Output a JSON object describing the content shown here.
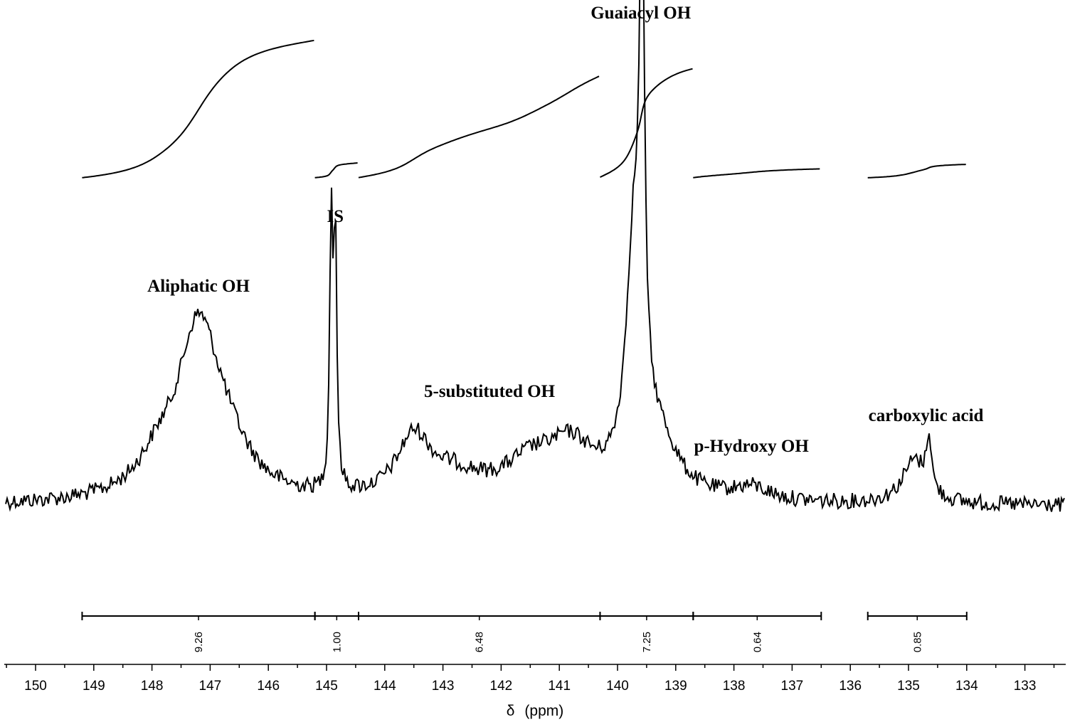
{
  "chart_data": {
    "type": "line",
    "title": "",
    "xlabel": "δ",
    "xunit": "(ppm)",
    "xlim": [
      150.5,
      132.5
    ],
    "x_reversed": true,
    "ticks": [
      "150",
      "149",
      "148",
      "147",
      "146",
      "145",
      "144",
      "143",
      "142",
      "141",
      "140",
      "139",
      "138",
      "137",
      "136",
      "135",
      "134",
      "133"
    ],
    "grid": false,
    "legend": "none",
    "annotations": [
      {
        "text": "Aliphatic OH",
        "x": 147.2
      },
      {
        "text": "IS",
        "x": 144.85
      },
      {
        "text": "5-substituted OH",
        "x": 142.2
      },
      {
        "text": "Guaiacyl OH",
        "x": 139.6
      },
      {
        "text": "p-Hydroxy OH",
        "x": 137.7
      },
      {
        "text": "carboxylic acid",
        "x": 134.7
      }
    ],
    "peaks": [
      {
        "label": "Aliphatic OH",
        "center": 147.2,
        "width": 0.45,
        "height": 0.62
      },
      {
        "label": "Aliphatic OH shoulder",
        "center": 146.7,
        "width": 0.5,
        "height": 0.12
      },
      {
        "label": "Aliphatic OH shoulder",
        "center": 147.9,
        "width": 0.4,
        "height": 0.1
      },
      {
        "label": "IS",
        "center": 144.92,
        "width": 0.03,
        "height": 1.0
      },
      {
        "label": "IS",
        "center": 144.85,
        "width": 0.03,
        "height": 0.95
      },
      {
        "label": "5-substituted OH",
        "center": 143.5,
        "width": 0.35,
        "height": 0.22
      },
      {
        "label": "5-substituted OH",
        "center": 142.8,
        "width": 0.6,
        "height": 0.08
      },
      {
        "label": "5-substituted OH",
        "center": 141.5,
        "width": 0.55,
        "height": 0.12
      },
      {
        "label": "5-substituted OH",
        "center": 140.8,
        "width": 0.5,
        "height": 0.18
      },
      {
        "label": "Guaiacyl OH",
        "center": 139.72,
        "width": 0.16,
        "height": 0.85
      },
      {
        "label": "Guaiacyl OH",
        "center": 139.58,
        "width": 0.05,
        "height": 1.72
      },
      {
        "label": "Guaiacyl OH shoulder",
        "center": 139.3,
        "width": 0.4,
        "height": 0.2
      },
      {
        "label": "p-Hydroxy OH",
        "center": 137.7,
        "width": 0.4,
        "height": 0.05
      },
      {
        "label": "carboxylic acid",
        "center": 134.9,
        "width": 0.25,
        "height": 0.16
      },
      {
        "label": "carboxylic acid",
        "center": 134.65,
        "width": 0.05,
        "height": 0.2
      }
    ],
    "integrals": [
      {
        "from": 149.2,
        "to": 145.2,
        "value": "9.26",
        "curve_rise": 0.92
      },
      {
        "from": 145.2,
        "to": 144.45,
        "value": "1.00",
        "curve_rise": 0.1
      },
      {
        "from": 144.45,
        "to": 140.3,
        "value": "6.48",
        "curve_rise": 0.68
      },
      {
        "from": 140.3,
        "to": 138.7,
        "value": "7.25",
        "curve_rise": 0.73
      },
      {
        "from": 138.7,
        "to": 136.5,
        "value": "0.64",
        "curve_rise": 0.06
      },
      {
        "from": 135.7,
        "to": 134.0,
        "value": "0.85",
        "curve_rise": 0.09
      }
    ]
  }
}
